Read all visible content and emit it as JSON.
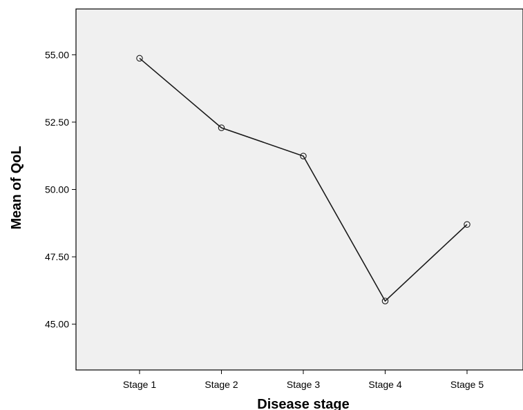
{
  "chart_data": {
    "type": "line",
    "title": "",
    "xlabel": "Disease stage",
    "ylabel": "Mean of QoL",
    "categories": [
      "Stage 1",
      "Stage 2",
      "Stage 3",
      "Stage 4",
      "Stage 5"
    ],
    "series": [
      {
        "values": [
          54.87,
          52.29,
          51.24,
          45.86,
          48.7
        ]
      }
    ],
    "ylim": [
      43.3,
      56.7
    ],
    "yticks": [
      45.0,
      47.5,
      50.0,
      52.5,
      55.0
    ],
    "ytick_labels": [
      "45.00",
      "47.50",
      "50.00",
      "52.50",
      "55.00"
    ],
    "grid": false,
    "legend": "none",
    "colors": {
      "plot_background": "#f0f0f0",
      "line": "#1a1a1a",
      "marker_stroke": "#1a1a1a"
    }
  }
}
